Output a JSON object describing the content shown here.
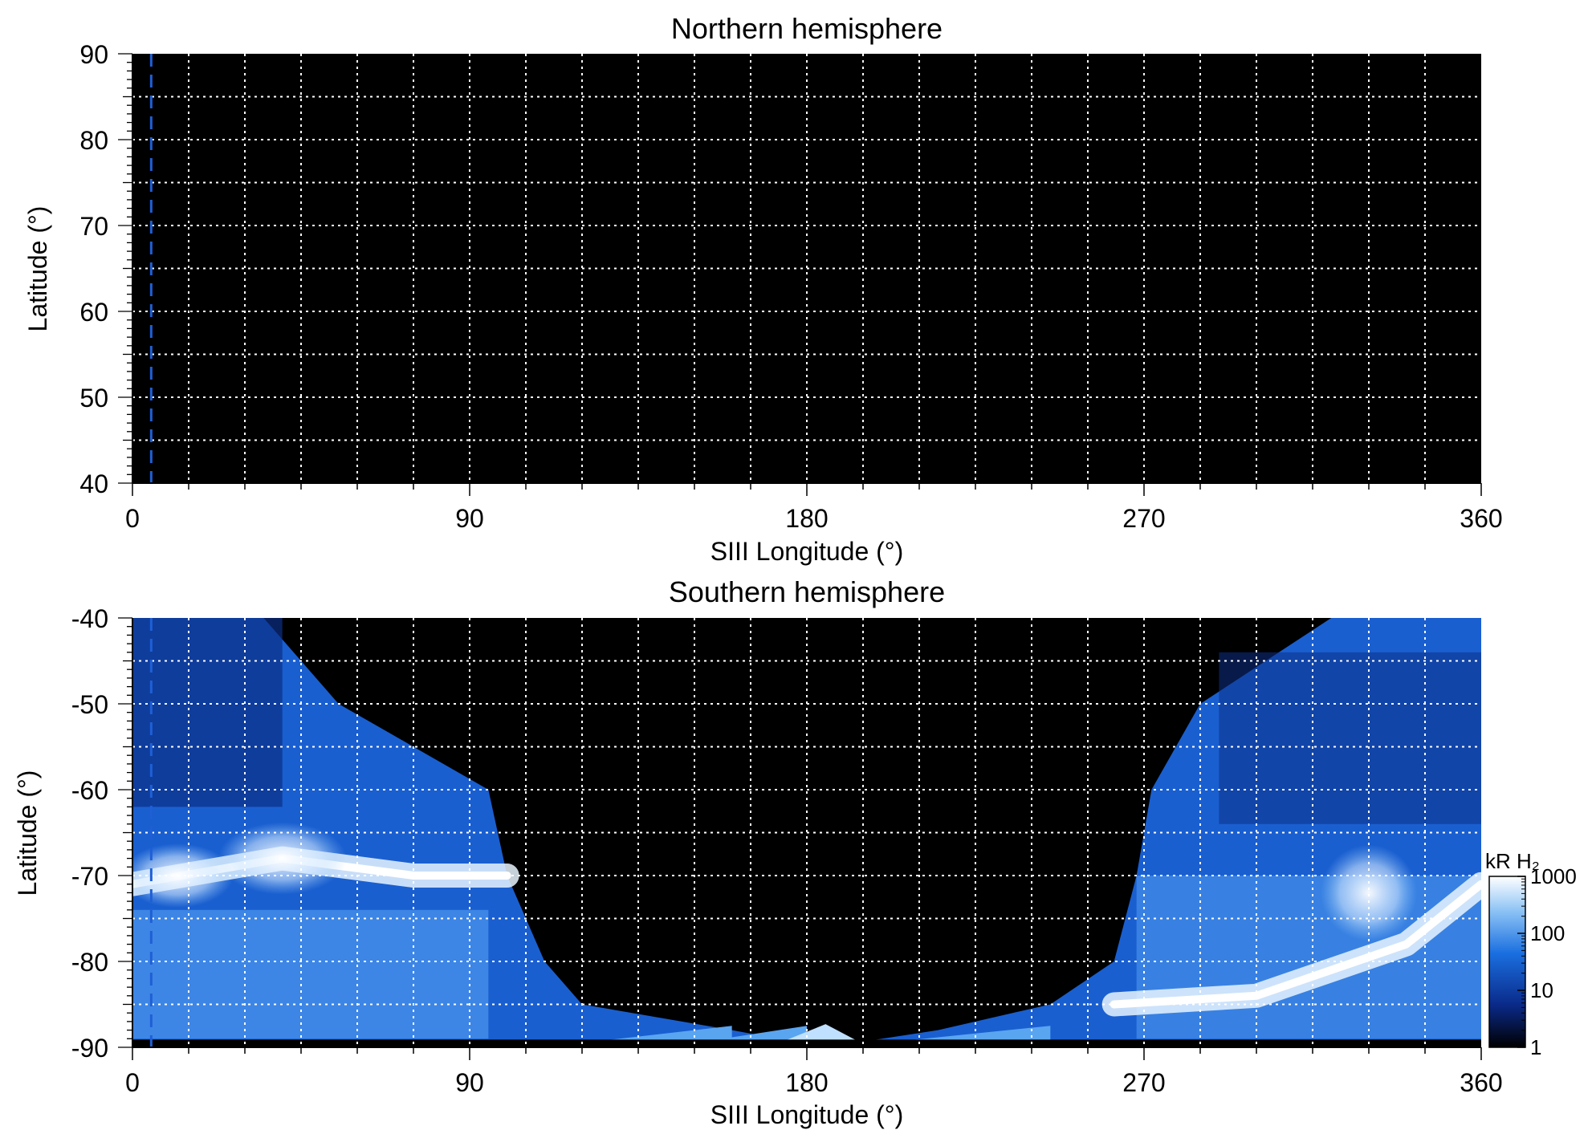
{
  "chart_data": [
    {
      "type": "heatmap",
      "title": "Northern hemisphere",
      "xlabel": "SIII Longitude (°)",
      "ylabel": "Latitude (°)",
      "xlim": [
        0,
        360
      ],
      "ylim": [
        40,
        90
      ],
      "xticks": [
        0,
        90,
        180,
        270,
        360
      ],
      "yticks": [
        40,
        50,
        60,
        70,
        80,
        90
      ],
      "grid": true,
      "grid_x_step": 15,
      "grid_y_step": 5,
      "background": "#000000",
      "reference_line": {
        "longitude": 5,
        "color": "#1f5fd6",
        "style": "dashed"
      }
    },
    {
      "type": "heatmap",
      "title": "Southern hemisphere",
      "xlabel": "SIII Longitude (°)",
      "ylabel": "Latitude (°)",
      "xlim": [
        0,
        360
      ],
      "ylim": [
        -90,
        -40
      ],
      "xticks": [
        0,
        90,
        180,
        270,
        360
      ],
      "yticks": [
        -90,
        -80,
        -70,
        -60,
        -50,
        -40
      ],
      "grid": true,
      "grid_x_step": 15,
      "grid_y_step": 5,
      "background": "#000000",
      "reference_line": {
        "longitude": 5,
        "color": "#1f5fd6",
        "style": "dashed"
      },
      "colorbar": {
        "label": "kR H₂",
        "scale": "log",
        "range": [
          1,
          1000
        ],
        "ticks": [
          1,
          10,
          100,
          1000
        ],
        "colors": [
          "#000000",
          "#0a2a8a",
          "#1a6fe0",
          "#8ec4f5",
          "#ffffff"
        ]
      },
      "emission_regions": [
        {
          "name": "western coverage",
          "lon_max_at_lat": [
            [
              -40,
              35
            ],
            [
              -50,
              55
            ],
            [
              -60,
              95
            ],
            [
              -70,
              100
            ],
            [
              -80,
              110
            ],
            [
              -85,
              120
            ],
            [
              -88,
              160
            ],
            [
              -90,
              185
            ]
          ]
        },
        {
          "name": "eastern coverage",
          "lon_min_at_lat": [
            [
              -40,
              320
            ],
            [
              -50,
              285
            ],
            [
              -60,
              272
            ],
            [
              -70,
              268
            ],
            [
              -80,
              262
            ],
            [
              -85,
              245
            ],
            [
              -88,
              215
            ],
            [
              -90,
              185
            ]
          ]
        },
        {
          "name": "main oval west",
          "band": [
            [
              0,
              -71
            ],
            [
              40,
              -68
            ],
            [
              75,
              -70
            ],
            [
              100,
              -70
            ]
          ]
        },
        {
          "name": "main oval east",
          "band": [
            [
              262,
              -85
            ],
            [
              300,
              -84
            ],
            [
              340,
              -78
            ],
            [
              360,
              -71
            ]
          ]
        }
      ]
    }
  ]
}
